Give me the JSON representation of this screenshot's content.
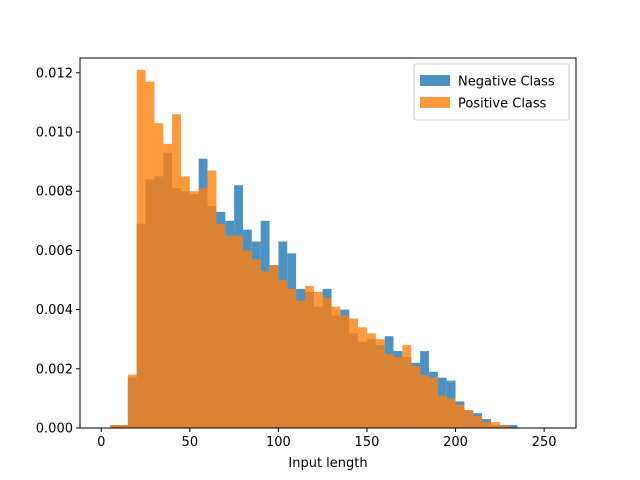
{
  "chart_data": {
    "type": "histogram",
    "xlabel": "Input length",
    "ylabel": "",
    "title": "",
    "xlim": [
      -12,
      268
    ],
    "ylim": [
      0,
      0.0125
    ],
    "xticks": [
      0,
      50,
      100,
      150,
      200,
      250
    ],
    "yticks": [
      0.0,
      0.002,
      0.004,
      0.006,
      0.008,
      0.01,
      0.012
    ],
    "xtick_labels": [
      "0",
      "50",
      "100",
      "150",
      "200",
      "250"
    ],
    "ytick_labels": [
      "0.000",
      "0.002",
      "0.004",
      "0.006",
      "0.008",
      "0.010",
      "0.012"
    ],
    "bin_width": 5,
    "legend_position": "top-right",
    "grid": false,
    "series": [
      {
        "name": "Negative Class",
        "color": "#1f77b4",
        "alpha": 0.8,
        "bin_starts": [
          5,
          10,
          15,
          20,
          25,
          30,
          35,
          40,
          45,
          50,
          55,
          60,
          65,
          70,
          75,
          80,
          85,
          90,
          95,
          100,
          105,
          110,
          115,
          120,
          125,
          130,
          135,
          140,
          145,
          150,
          155,
          160,
          165,
          170,
          175,
          180,
          185,
          190,
          195,
          200,
          205,
          210,
          215,
          220,
          225,
          230
        ],
        "values": [
          0.0001,
          0.0001,
          0.0017,
          0.0069,
          0.0084,
          0.0085,
          0.0093,
          0.0081,
          0.008,
          0.0079,
          0.0091,
          0.0075,
          0.0073,
          0.007,
          0.0082,
          0.0067,
          0.0063,
          0.007,
          0.0055,
          0.0063,
          0.0059,
          0.0047,
          0.0046,
          0.0041,
          0.0047,
          0.0038,
          0.004,
          0.0032,
          0.0029,
          0.003,
          0.0028,
          0.0031,
          0.0026,
          0.0024,
          0.0022,
          0.0026,
          0.0019,
          0.0017,
          0.0016,
          0.0009,
          0.0006,
          0.0005,
          0.0003,
          0.0001,
          0.0001,
          0.0001
        ]
      },
      {
        "name": "Positive Class",
        "color": "#ff7f0e",
        "alpha": 0.8,
        "bin_starts": [
          5,
          10,
          15,
          20,
          25,
          30,
          35,
          40,
          45,
          50,
          55,
          60,
          65,
          70,
          75,
          80,
          85,
          90,
          95,
          100,
          105,
          110,
          115,
          120,
          125,
          130,
          135,
          140,
          145,
          150,
          155,
          160,
          165,
          170,
          175,
          180,
          185,
          190,
          195,
          200,
          205,
          210,
          215,
          220,
          225,
          230
        ],
        "values": [
          0.0001,
          0.0001,
          0.0018,
          0.0121,
          0.0117,
          0.0103,
          0.0096,
          0.0106,
          0.0085,
          0.008,
          0.0081,
          0.0087,
          0.0069,
          0.0065,
          0.0065,
          0.006,
          0.0057,
          0.0053,
          0.0055,
          0.005,
          0.0047,
          0.0043,
          0.0048,
          0.0046,
          0.0044,
          0.0041,
          0.0038,
          0.0037,
          0.0034,
          0.0032,
          0.003,
          0.0025,
          0.0024,
          0.0028,
          0.0021,
          0.0018,
          0.0017,
          0.0011,
          0.001,
          0.0008,
          0.0006,
          0.0004,
          0.0002,
          0.0002,
          0.0001,
          0.0
        ]
      }
    ]
  }
}
